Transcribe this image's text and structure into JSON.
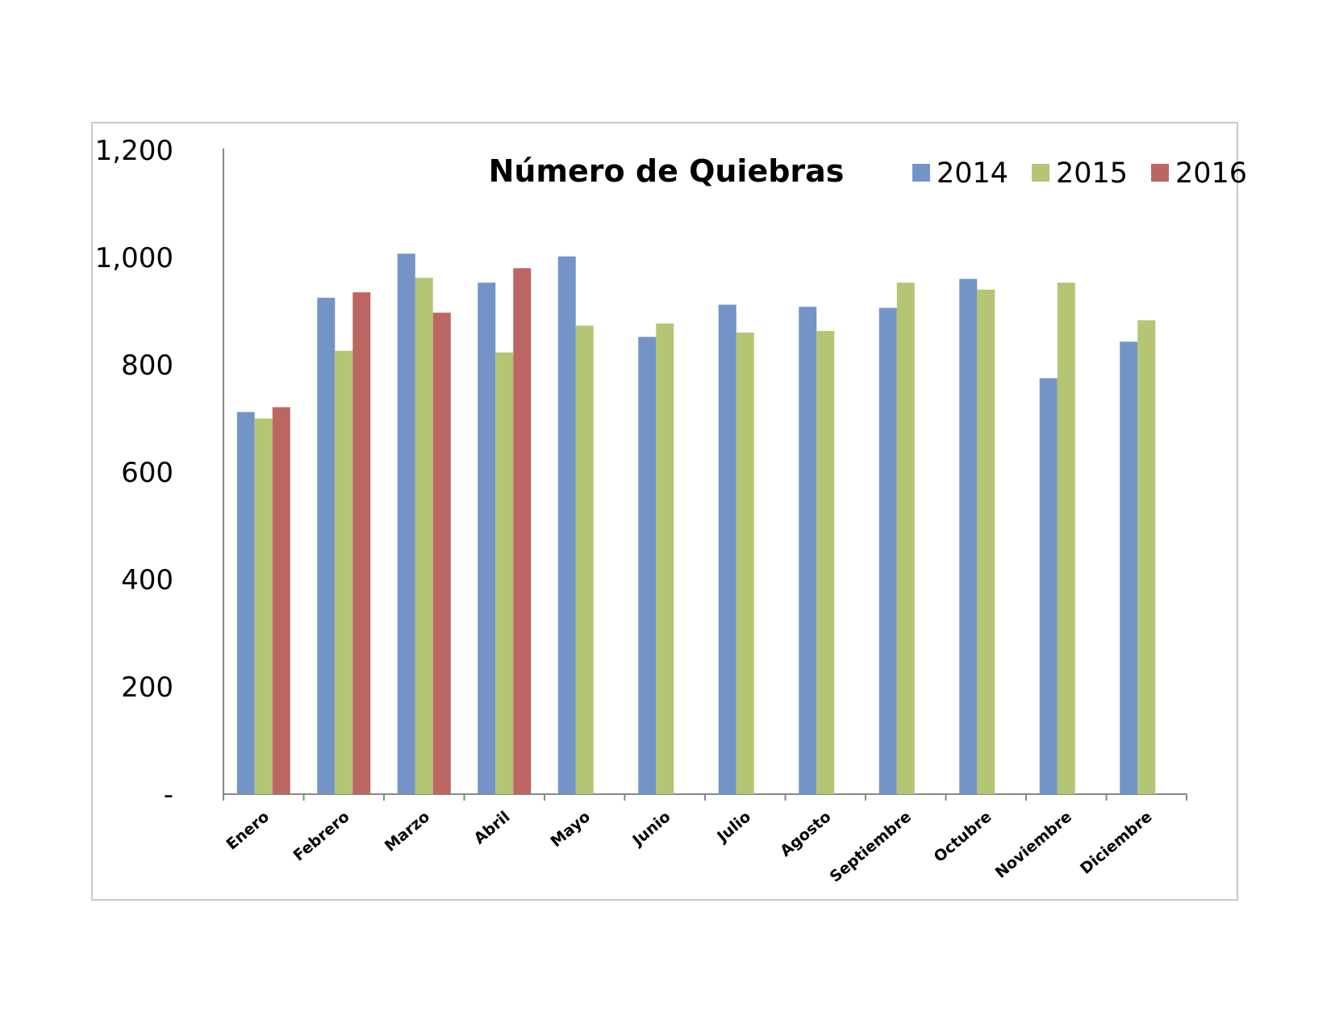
{
  "chart_data": {
    "type": "bar",
    "title": "Número de Quiebras",
    "xlabel": "",
    "ylabel": "",
    "ylim": [
      0,
      1200
    ],
    "yticks": [
      0,
      200,
      400,
      600,
      800,
      1000,
      1200
    ],
    "ytick_labels": [
      "-",
      "200",
      "400",
      "600",
      "800",
      "1,000",
      "1,200"
    ],
    "grid": false,
    "legend_position": "top-right",
    "categories": [
      "Enero",
      "Febrero",
      "Marzo",
      "Abril",
      "Mayo",
      "Junio",
      "Julio",
      "Agosto",
      "Septiembre",
      "Octubre",
      "Noviembre",
      "Diciembre"
    ],
    "series": [
      {
        "name": "2014",
        "color": "#7394c6",
        "values": [
          712,
          925,
          1007,
          953,
          1002,
          852,
          912,
          908,
          906,
          960,
          775,
          843
        ]
      },
      {
        "name": "2015",
        "color": "#b4c573",
        "values": [
          700,
          826,
          962,
          823,
          873,
          877,
          860,
          863,
          953,
          940,
          953,
          883
        ]
      },
      {
        "name": "2016",
        "color": "#bb6663",
        "values": [
          721,
          935,
          897,
          980,
          null,
          null,
          null,
          null,
          null,
          null,
          null,
          null
        ]
      }
    ]
  }
}
